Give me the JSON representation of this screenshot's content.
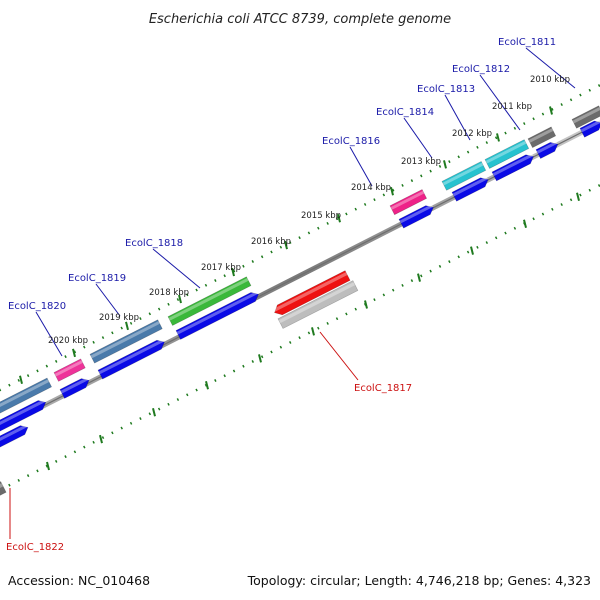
{
  "title": "Escherichia coli ATCC 8739, complete genome",
  "footer": {
    "accession": "Accession: NC_010468",
    "topology": "Topology: circular; Length: 4,746,218 bp; Genes: 4,323"
  },
  "colors": {
    "forward_label": "#1a1aa8",
    "reverse_label": "#cc1111",
    "tick": "#1f7a1f",
    "cds": "#0a0ae6",
    "backbone": "#8a8a8a"
  },
  "kbp_marks": [
    "2010 kbp",
    "2011 kbp",
    "2012 kbp",
    "2013 kbp",
    "2014 kbp",
    "2015 kbp",
    "2016 kbp",
    "2017 kbp",
    "2018 kbp",
    "2019 kbp",
    "2020 kbp"
  ],
  "genes": [
    {
      "name": "EcolC_1811",
      "strand": "forward",
      "color": "#6b6b6b"
    },
    {
      "name": "EcolC_1812",
      "strand": "forward",
      "color": "#27c2cf"
    },
    {
      "name": "EcolC_1813",
      "strand": "forward",
      "color": "#27c2cf"
    },
    {
      "name": "EcolC_1814",
      "strand": "forward",
      "color": "#27c2cf"
    },
    {
      "name": "EcolC_1816",
      "strand": "forward",
      "color": "#ee2288"
    },
    {
      "name": "EcolC_1818",
      "strand": "forward",
      "color": "#3ab83a"
    },
    {
      "name": "EcolC_1819",
      "strand": "forward",
      "color": "#4a7aaa"
    },
    {
      "name": "EcolC_1820",
      "strand": "forward",
      "color": "#ee3399"
    },
    {
      "name": "EcolC_1817",
      "strand": "reverse",
      "color": "#ee1111"
    },
    {
      "name": "EcolC_1822",
      "strand": "reverse",
      "color": "#6b6b6b"
    }
  ]
}
